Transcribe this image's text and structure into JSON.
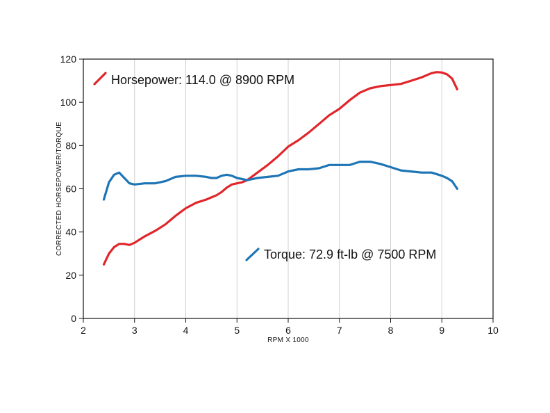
{
  "chart_data": {
    "type": "line",
    "title": "",
    "xlabel": "RPM X 1000",
    "ylabel": "CORRECTED HORSEPOWER/TORQUE",
    "xlim": [
      2,
      10
    ],
    "ylim": [
      0,
      120
    ],
    "x_ticks": [
      "2",
      "3",
      "4",
      "5",
      "6",
      "7",
      "8",
      "9",
      "10"
    ],
    "y_ticks": [
      "0",
      "20",
      "40",
      "60",
      "80",
      "100",
      "120"
    ],
    "grid": "vertical",
    "series": [
      {
        "name": "Horsepower: 114.0 @ 8900 RPM",
        "color": "#e0262b",
        "x": [
          2.4,
          2.5,
          2.6,
          2.7,
          2.8,
          2.9,
          3.0,
          3.1,
          3.2,
          3.4,
          3.6,
          3.8,
          4.0,
          4.2,
          4.4,
          4.5,
          4.6,
          4.7,
          4.8,
          4.9,
          5.0,
          5.1,
          5.2,
          5.4,
          5.6,
          5.8,
          6.0,
          6.2,
          6.4,
          6.6,
          6.8,
          7.0,
          7.2,
          7.4,
          7.6,
          7.8,
          8.0,
          8.2,
          8.4,
          8.6,
          8.8,
          8.9,
          9.0,
          9.1,
          9.2,
          9.3
        ],
        "values": [
          25,
          30,
          33,
          34.5,
          34.5,
          34,
          35,
          36.5,
          38,
          40.5,
          43.5,
          47.5,
          51,
          53.5,
          55,
          56,
          57,
          58.5,
          60.5,
          62,
          62.5,
          63,
          64,
          67.5,
          71,
          75,
          79.5,
          82.5,
          86,
          90,
          94,
          97,
          101,
          104.5,
          106.5,
          107.5,
          108,
          108.5,
          110,
          111.5,
          113.5,
          114,
          113.8,
          113,
          111,
          106
        ]
      },
      {
        "name": "Torque: 72.9 ft-lb @ 7500 RPM",
        "color": "#1d75b5",
        "x": [
          2.4,
          2.5,
          2.6,
          2.7,
          2.8,
          2.9,
          3.0,
          3.2,
          3.4,
          3.6,
          3.8,
          4.0,
          4.2,
          4.4,
          4.5,
          4.6,
          4.7,
          4.8,
          4.9,
          5.0,
          5.1,
          5.2,
          5.4,
          5.6,
          5.8,
          6.0,
          6.2,
          6.4,
          6.6,
          6.8,
          7.0,
          7.2,
          7.4,
          7.6,
          7.8,
          8.0,
          8.2,
          8.4,
          8.6,
          8.8,
          9.0,
          9.1,
          9.2,
          9.3
        ],
        "values": [
          55,
          63,
          66.5,
          67.5,
          65,
          62.5,
          62,
          62.5,
          62.5,
          63.5,
          65.5,
          66,
          66,
          65.5,
          65,
          65,
          66,
          66.5,
          66,
          65,
          64.5,
          64,
          65,
          65.5,
          66,
          68,
          69,
          69,
          69.5,
          71,
          71,
          71,
          72.5,
          72.5,
          71.5,
          70,
          68.5,
          68,
          67.5,
          67.5,
          66,
          65,
          63.5,
          60
        ]
      }
    ]
  }
}
